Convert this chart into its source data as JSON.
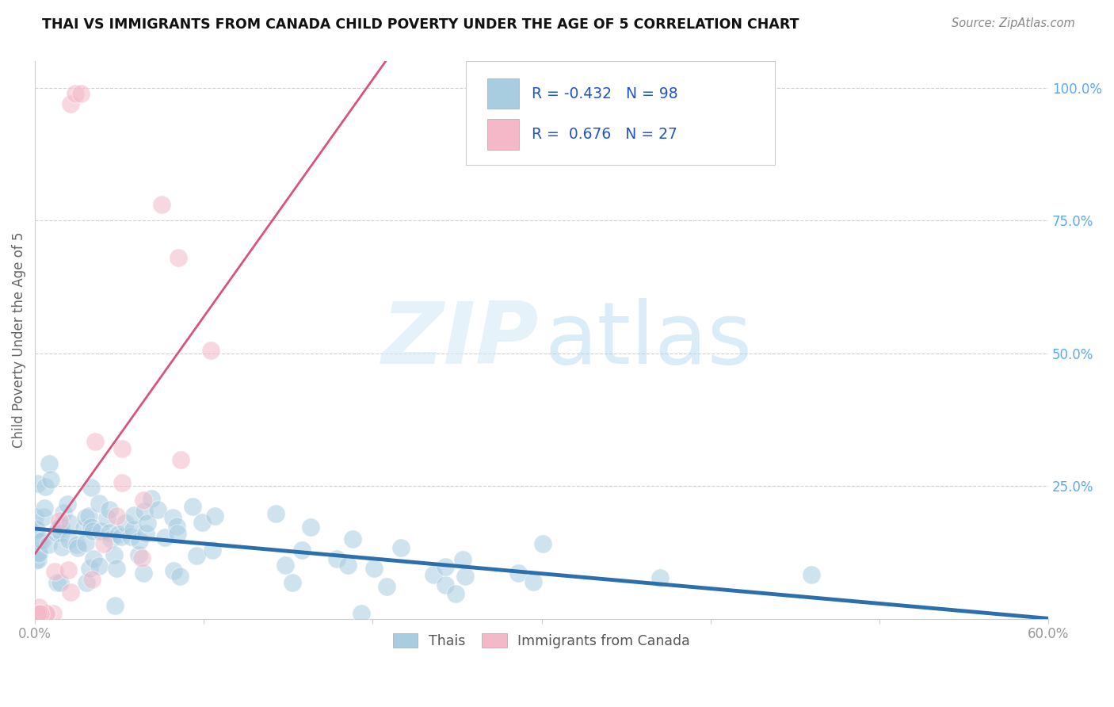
{
  "title": "THAI VS IMMIGRANTS FROM CANADA CHILD POVERTY UNDER THE AGE OF 5 CORRELATION CHART",
  "source": "Source: ZipAtlas.com",
  "ylabel": "Child Poverty Under the Age of 5",
  "xlim": [
    0.0,
    0.6
  ],
  "ylim": [
    0.0,
    1.05
  ],
  "blue_R": -0.432,
  "blue_N": 98,
  "pink_R": 0.676,
  "pink_N": 27,
  "blue_color": "#a8cce0",
  "pink_color": "#f4b8c8",
  "blue_line_color": "#2c6fad",
  "pink_line_color": "#d9547a",
  "background_color": "#ffffff",
  "legend_blue_label": "Thais",
  "legend_pink_label": "Immigrants from Canada",
  "grid_color": "#cccccc",
  "tick_color": "#999999",
  "right_tick_color": "#55aaff"
}
